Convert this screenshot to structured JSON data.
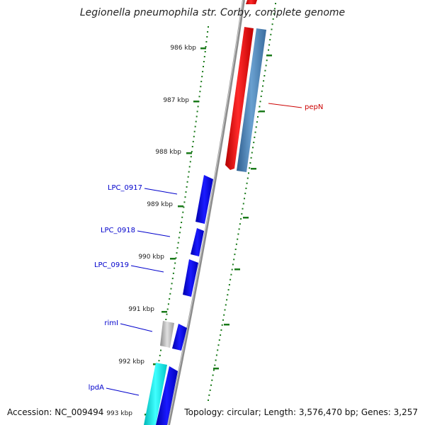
{
  "title": "Legionella pneumophila str. Corby, complete genome",
  "footer": {
    "accession": "Accession: NC_009494",
    "summary": "Topology: circular; Length: 3,576,470 bp; Genes: 3,257"
  },
  "ticks": [
    "986 kbp",
    "987 kbp",
    "988 kbp",
    "989 kbp",
    "990 kbp",
    "991 kbp",
    "992 kbp",
    "993 kbp"
  ],
  "genes": [
    {
      "label": "pepN",
      "color": "#cc0000"
    },
    {
      "label": "LPC_0917",
      "color": "#0000cc"
    },
    {
      "label": "LPC_0918",
      "color": "#0000cc"
    },
    {
      "label": "LPC_0919",
      "color": "#0000cc"
    },
    {
      "label": "rimI",
      "color": "#0000cc"
    },
    {
      "label": "lpdA",
      "color": "#0000cc"
    }
  ],
  "colors": {
    "backbone": "#8c8c8c",
    "red_feature": "#ff0000",
    "steel_feature": "#4f86b9",
    "blue_feature": "#0000ee",
    "cyan_feature": "#00e6e6",
    "gray_feature": "#b0b0b0",
    "tick_green": "#1a7a1a"
  }
}
